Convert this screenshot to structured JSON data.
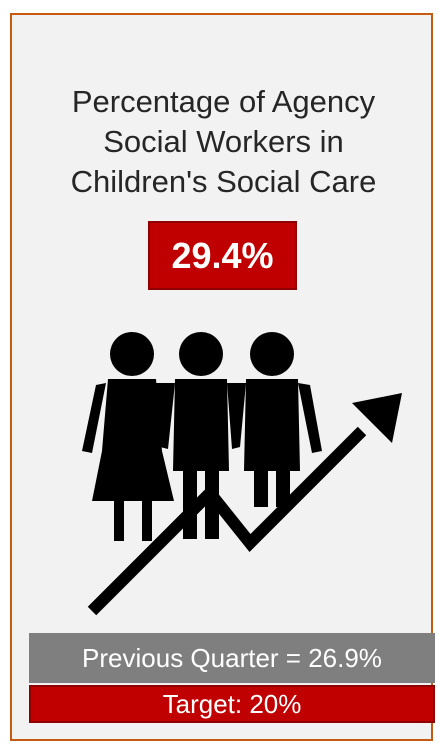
{
  "card": {
    "title_lines": [
      "Percentage of Agency",
      "Social Workers in",
      "Children's Social Care"
    ],
    "value": "29.4%",
    "previous_quarter": "Previous Quarter = 26.9%",
    "target": "Target: 20%",
    "illustration_icon": "people-with-rising-trend-arrow-icon"
  },
  "colors": {
    "accent_red": "#c00000",
    "border_orange": "#c55a11",
    "background": "#f2f2f2",
    "grey_band": "#7f7f7f",
    "text": "#262626"
  }
}
